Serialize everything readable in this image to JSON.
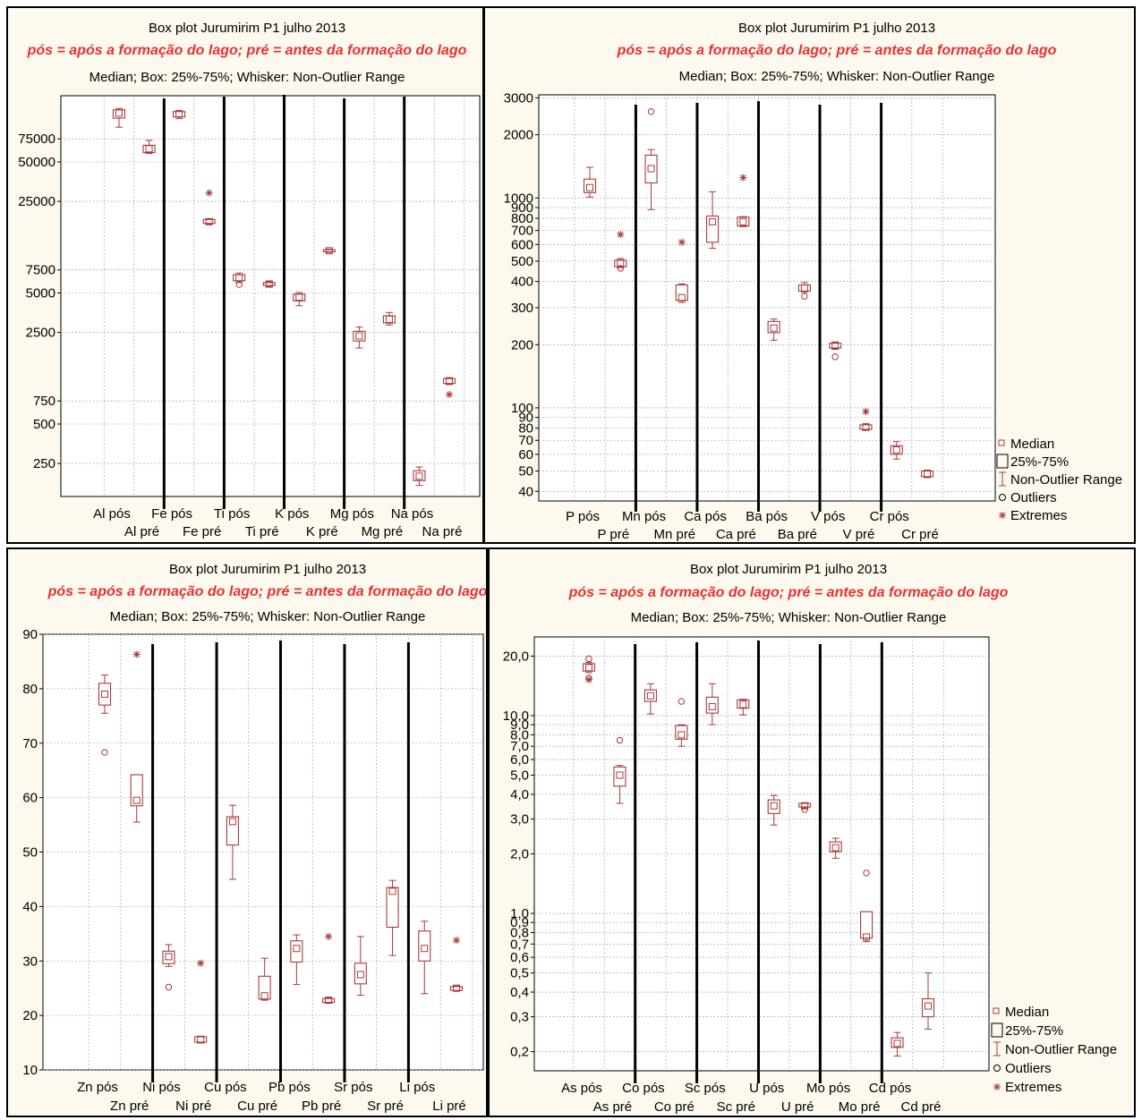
{
  "colors": {
    "box": "#a83a3a",
    "subtitle": "#e53232",
    "separator": "#000000",
    "panel_bg": "#fdf9ef",
    "grid": "#9a9a9a"
  },
  "legend_items": [
    {
      "symbol": "median",
      "label": "Median"
    },
    {
      "symbol": "box",
      "label": "25%-75%"
    },
    {
      "symbol": "whisker",
      "label": "Non-Outlier Range"
    },
    {
      "symbol": "outlier",
      "label": "Outliers"
    },
    {
      "symbol": "extreme",
      "label": "Extremes"
    }
  ],
  "chart_data": [
    {
      "type": "box",
      "title": "Box plot Jurumirim P1 julho 2013",
      "subtitle": "pós = após a formação do lago; pré = antes da formação do lago",
      "note": "Median; Box: 25%-75%; Whisker: Non-Outlier Range",
      "yscale": "log",
      "ylim": [
        140,
        160000
      ],
      "yticks": [
        250,
        500,
        750,
        2500,
        5000,
        7500,
        25000,
        50000,
        75000
      ],
      "ytick_labels": [
        "250",
        "500",
        "750",
        "2500",
        "5000",
        "7500",
        "25000",
        "50000",
        "75000"
      ],
      "categories": [
        "Al pós",
        "Al pré",
        "Fe pós",
        "Fe pré",
        "Ti pós",
        "Ti pré",
        "K pós",
        "K pré",
        "Mg pós",
        "Mg pré",
        "Na pós",
        "Na pré"
      ],
      "separators_after": [
        2,
        4,
        6,
        8,
        10
      ],
      "legend": false,
      "boxes": [
        {
          "median": 118000,
          "q1": 108000,
          "q3": 125000,
          "min": 92000,
          "max": 128000,
          "outliers": [],
          "extremes": []
        },
        {
          "median": 63000,
          "q1": 59000,
          "q3": 67000,
          "min": 58000,
          "max": 73000,
          "outliers": [],
          "extremes": []
        },
        {
          "median": 117000,
          "q1": 110000,
          "q3": 121000,
          "min": 107000,
          "max": 123000,
          "outliers": [],
          "extremes": []
        },
        {
          "median": 17500,
          "q1": 17000,
          "q3": 18200,
          "min": 16800,
          "max": 18400,
          "outliers": [],
          "extremes": [
            29000
          ]
        },
        {
          "median": 6500,
          "q1": 6200,
          "q3": 6900,
          "min": 6000,
          "max": 7100,
          "outliers": [
            5800
          ],
          "extremes": []
        },
        {
          "median": 5850,
          "q1": 5700,
          "q3": 6000,
          "min": 5600,
          "max": 6100,
          "outliers": [],
          "extremes": []
        },
        {
          "median": 4650,
          "q1": 4350,
          "q3": 4900,
          "min": 4000,
          "max": 5050,
          "outliers": [],
          "extremes": []
        },
        {
          "median": 10500,
          "q1": 10300,
          "q3": 10700,
          "min": 10200,
          "max": 10800,
          "outliers": [],
          "extremes": []
        },
        {
          "median": 2350,
          "q1": 2150,
          "q3": 2550,
          "min": 1900,
          "max": 2750,
          "outliers": [],
          "extremes": []
        },
        {
          "median": 3150,
          "q1": 2950,
          "q3": 3350,
          "min": 2850,
          "max": 3550,
          "outliers": [],
          "extremes": []
        },
        {
          "median": 200,
          "q1": 185,
          "q3": 220,
          "min": 170,
          "max": 235,
          "outliers": [],
          "extremes": []
        },
        {
          "median": 1070,
          "q1": 1020,
          "q3": 1110,
          "min": 1000,
          "max": 1120,
          "outliers": [],
          "extremes": [
            840
          ]
        }
      ]
    },
    {
      "type": "box",
      "title": "Box plot Jurumirim P1 julho 2013",
      "subtitle": "pós = após a formação do lago; pré = antes da formação do lago",
      "note": "Median; Box: 25%-75%; Whisker: Non-Outlier Range",
      "yscale": "log",
      "ylim": [
        36,
        3100
      ],
      "yticks": [
        40,
        50,
        60,
        70,
        80,
        90,
        100,
        200,
        300,
        400,
        500,
        600,
        700,
        800,
        900,
        1000,
        2000,
        3000
      ],
      "ytick_labels": [
        "40",
        "50",
        "60",
        "70",
        "80",
        "90",
        "100",
        "200",
        "300",
        "400",
        "500",
        "600",
        "700",
        "800",
        "900",
        "1000",
        "2000",
        "3000"
      ],
      "categories": [
        "P pós",
        "P pré",
        "Mn pós",
        "Mn pré",
        "Ca pós",
        "Ca pré",
        "Ba pós",
        "Ba pré",
        "V pós",
        "V pré",
        "Cr pós",
        "Cr pré"
      ],
      "separators_after": [
        2,
        4,
        6,
        8,
        10
      ],
      "legend": true,
      "boxes": [
        {
          "median": 1120,
          "q1": 1060,
          "q3": 1230,
          "min": 1010,
          "max": 1400,
          "outliers": [],
          "extremes": []
        },
        {
          "median": 490,
          "q1": 470,
          "q3": 505,
          "min": 465,
          "max": 515,
          "outliers": [
            462
          ],
          "extremes": [
            670
          ]
        },
        {
          "median": 1380,
          "q1": 1180,
          "q3": 1600,
          "min": 880,
          "max": 1700,
          "outliers": [
            2580
          ],
          "extremes": []
        },
        {
          "median": 335,
          "q1": 325,
          "q3": 385,
          "min": 318,
          "max": 390,
          "outliers": [],
          "extremes": [
            615
          ]
        },
        {
          "median": 770,
          "q1": 615,
          "q3": 820,
          "min": 575,
          "max": 1070,
          "outliers": [],
          "extremes": []
        },
        {
          "median": 770,
          "q1": 735,
          "q3": 810,
          "min": 730,
          "max": 815,
          "outliers": [],
          "extremes": [
            1250
          ]
        },
        {
          "median": 240,
          "q1": 228,
          "q3": 258,
          "min": 210,
          "max": 265,
          "outliers": [],
          "extremes": []
        },
        {
          "median": 372,
          "q1": 360,
          "q3": 385,
          "min": 355,
          "max": 395,
          "outliers": [
            340
          ],
          "extremes": []
        },
        {
          "median": 198,
          "q1": 193,
          "q3": 203,
          "min": 190,
          "max": 206,
          "outliers": [
            175
          ],
          "extremes": []
        },
        {
          "median": 81,
          "q1": 79,
          "q3": 83,
          "min": 78,
          "max": 84,
          "outliers": [],
          "extremes": [
            96
          ]
        },
        {
          "median": 63,
          "q1": 60,
          "q3": 66,
          "min": 57,
          "max": 69,
          "outliers": [],
          "extremes": []
        },
        {
          "median": 48.5,
          "q1": 47,
          "q3": 50,
          "min": 46.5,
          "max": 50.5,
          "outliers": [],
          "extremes": []
        }
      ]
    },
    {
      "type": "box",
      "title": "Box plot Jurumirim P1 julho 2013",
      "subtitle": "pós = após a formação do lago; pré = antes da formação do lago",
      "note": "Median; Box: 25%-75%; Whisker: Non-Outlier Range",
      "yscale": "linear",
      "ylim": [
        10,
        90
      ],
      "yticks": [
        10,
        20,
        30,
        40,
        50,
        60,
        70,
        80,
        90
      ],
      "ytick_labels": [
        "10",
        "20",
        "30",
        "40",
        "50",
        "60",
        "70",
        "80",
        "90"
      ],
      "categories": [
        "Zn pós",
        "Zn pré",
        "Ni pós",
        "Ni pré",
        "Cu pós",
        "Cu pré",
        "Pb pós",
        "Pb pré",
        "Sr pós",
        "Sr pré",
        "Li pós",
        "Li pré"
      ],
      "separators_after": [
        2,
        4,
        6,
        8,
        10
      ],
      "legend": false,
      "boxes": [
        {
          "median": 79,
          "q1": 77,
          "q3": 81,
          "min": 75.5,
          "max": 82.5,
          "outliers": [
            68.3
          ],
          "extremes": []
        },
        {
          "median": 59.5,
          "q1": 58.5,
          "q3": 64.2,
          "min": 55.5,
          "max": 64.2,
          "outliers": [],
          "extremes": [
            86.3
          ]
        },
        {
          "median": 30.8,
          "q1": 29.5,
          "q3": 31.8,
          "min": 29,
          "max": 33,
          "outliers": [
            25.2
          ],
          "extremes": []
        },
        {
          "median": 15.5,
          "q1": 15.1,
          "q3": 16.1,
          "min": 15,
          "max": 16.2,
          "outliers": [],
          "extremes": [
            29.6
          ]
        },
        {
          "median": 55.6,
          "q1": 51.3,
          "q3": 56.5,
          "min": 45,
          "max": 58.6,
          "outliers": [],
          "extremes": []
        },
        {
          "median": 23.6,
          "q1": 23,
          "q3": 27.2,
          "min": 22.8,
          "max": 30.5,
          "outliers": [],
          "extremes": []
        },
        {
          "median": 32.3,
          "q1": 29.8,
          "q3": 33.7,
          "min": 25.7,
          "max": 34.8,
          "outliers": [],
          "extremes": []
        },
        {
          "median": 22.8,
          "q1": 22.4,
          "q3": 23.1,
          "min": 22.3,
          "max": 23.2,
          "outliers": [],
          "extremes": [
            34.5
          ]
        },
        {
          "median": 27.5,
          "q1": 25.8,
          "q3": 29.6,
          "min": 23.7,
          "max": 34.5,
          "outliers": [],
          "extremes": []
        },
        {
          "median": 42.8,
          "q1": 36.2,
          "q3": 43.5,
          "min": 31,
          "max": 44.8,
          "outliers": [],
          "extremes": []
        },
        {
          "median": 32.3,
          "q1": 30,
          "q3": 35.5,
          "min": 24,
          "max": 37.3,
          "outliers": [],
          "extremes": []
        },
        {
          "median": 25,
          "q1": 24.6,
          "q3": 25.3,
          "min": 24.5,
          "max": 25.4,
          "outliers": [],
          "extremes": [
            33.8
          ]
        }
      ]
    },
    {
      "type": "box",
      "title": "Box plot Jurumirim P1 julho 2013",
      "subtitle": "pós = após a formação do lago; pré = antes da formação do lago",
      "note": "Median; Box: 25%-75%; Whisker: Non-Outlier Range",
      "yscale": "log",
      "ylim": [
        0.16,
        25
      ],
      "yticks": [
        0.2,
        0.3,
        0.4,
        0.5,
        0.6,
        0.7,
        0.8,
        0.9,
        1.0,
        2.0,
        3.0,
        4.0,
        5.0,
        6.0,
        7.0,
        8.0,
        9.0,
        10.0,
        20.0
      ],
      "ytick_labels": [
        "0,2",
        "0,3",
        "0,4",
        "0,5",
        "0,6",
        "0,7",
        "0,8",
        "0,9",
        "1,0",
        "2,0",
        "3,0",
        "4,0",
        "5,0",
        "6,0",
        "7,0",
        "8,0",
        "9,0",
        "10,0",
        "20,0"
      ],
      "categories": [
        "As pós",
        "As pré",
        "Co pós",
        "Co pré",
        "Sc pós",
        "Sc pré",
        "U pós",
        "U pré",
        "Mo pós",
        "Mo pré",
        "Cd pós",
        "Cd pré"
      ],
      "separators_after": [
        2,
        4,
        6,
        8,
        10
      ],
      "legend": true,
      "boxes": [
        {
          "median": 17.5,
          "q1": 16.8,
          "q3": 18.3,
          "min": 16.5,
          "max": 18.6,
          "outliers": [
            19.4,
            15.5
          ],
          "extremes": [
            15.2
          ]
        },
        {
          "median": 5.0,
          "q1": 4.4,
          "q3": 5.5,
          "min": 3.6,
          "max": 5.6,
          "outliers": [
            7.5
          ],
          "extremes": []
        },
        {
          "median": 12.6,
          "q1": 11.8,
          "q3": 13.5,
          "min": 10.2,
          "max": 14.5,
          "outliers": [],
          "extremes": []
        },
        {
          "median": 8.0,
          "q1": 7.6,
          "q3": 8.9,
          "min": 7.0,
          "max": 9.0,
          "outliers": [
            11.8
          ],
          "extremes": []
        },
        {
          "median": 11.1,
          "q1": 10.3,
          "q3": 12.4,
          "min": 9.0,
          "max": 14.5,
          "outliers": [],
          "extremes": []
        },
        {
          "median": 11.4,
          "q1": 10.9,
          "q3": 12.0,
          "min": 10.1,
          "max": 12.1,
          "outliers": [],
          "extremes": []
        },
        {
          "median": 3.5,
          "q1": 3.2,
          "q3": 3.75,
          "min": 2.8,
          "max": 3.95,
          "outliers": [],
          "extremes": []
        },
        {
          "median": 3.5,
          "q1": 3.45,
          "q3": 3.6,
          "min": 3.4,
          "max": 3.62,
          "outliers": [
            3.35
          ],
          "extremes": []
        },
        {
          "median": 2.15,
          "q1": 2.05,
          "q3": 2.3,
          "min": 1.9,
          "max": 2.4,
          "outliers": [],
          "extremes": []
        },
        {
          "median": 0.76,
          "q1": 0.75,
          "q3": 1.02,
          "min": 0.72,
          "max": 1.02,
          "outliers": [
            1.6
          ],
          "extremes": []
        },
        {
          "median": 0.22,
          "q1": 0.21,
          "q3": 0.235,
          "min": 0.19,
          "max": 0.25,
          "outliers": [],
          "extremes": []
        },
        {
          "median": 0.34,
          "q1": 0.3,
          "q3": 0.37,
          "min": 0.26,
          "max": 0.5,
          "outliers": [],
          "extremes": []
        }
      ]
    }
  ]
}
